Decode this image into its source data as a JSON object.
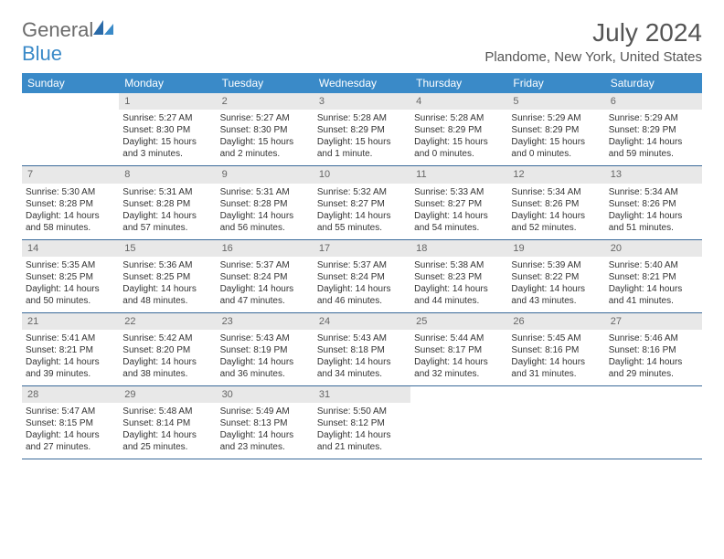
{
  "brand": {
    "part1": "General",
    "part2": "Blue"
  },
  "title": {
    "month": "July 2024",
    "location": "Plandome, New York, United States"
  },
  "colors": {
    "header_bg": "#3a8ac8",
    "header_text": "#ffffff",
    "daynum_bg": "#e8e8e8",
    "daynum_text": "#666666",
    "week_border": "#3a6a9a",
    "text": "#333333",
    "title_text": "#555555"
  },
  "dayNames": [
    "Sunday",
    "Monday",
    "Tuesday",
    "Wednesday",
    "Thursday",
    "Friday",
    "Saturday"
  ],
  "weeks": [
    [
      {
        "n": ""
      },
      {
        "n": "1",
        "sunrise": "5:27 AM",
        "sunset": "8:30 PM",
        "daylight": "15 hours and 3 minutes."
      },
      {
        "n": "2",
        "sunrise": "5:27 AM",
        "sunset": "8:30 PM",
        "daylight": "15 hours and 2 minutes."
      },
      {
        "n": "3",
        "sunrise": "5:28 AM",
        "sunset": "8:29 PM",
        "daylight": "15 hours and 1 minute."
      },
      {
        "n": "4",
        "sunrise": "5:28 AM",
        "sunset": "8:29 PM",
        "daylight": "15 hours and 0 minutes."
      },
      {
        "n": "5",
        "sunrise": "5:29 AM",
        "sunset": "8:29 PM",
        "daylight": "15 hours and 0 minutes."
      },
      {
        "n": "6",
        "sunrise": "5:29 AM",
        "sunset": "8:29 PM",
        "daylight": "14 hours and 59 minutes."
      }
    ],
    [
      {
        "n": "7",
        "sunrise": "5:30 AM",
        "sunset": "8:28 PM",
        "daylight": "14 hours and 58 minutes."
      },
      {
        "n": "8",
        "sunrise": "5:31 AM",
        "sunset": "8:28 PM",
        "daylight": "14 hours and 57 minutes."
      },
      {
        "n": "9",
        "sunrise": "5:31 AM",
        "sunset": "8:28 PM",
        "daylight": "14 hours and 56 minutes."
      },
      {
        "n": "10",
        "sunrise": "5:32 AM",
        "sunset": "8:27 PM",
        "daylight": "14 hours and 55 minutes."
      },
      {
        "n": "11",
        "sunrise": "5:33 AM",
        "sunset": "8:27 PM",
        "daylight": "14 hours and 54 minutes."
      },
      {
        "n": "12",
        "sunrise": "5:34 AM",
        "sunset": "8:26 PM",
        "daylight": "14 hours and 52 minutes."
      },
      {
        "n": "13",
        "sunrise": "5:34 AM",
        "sunset": "8:26 PM",
        "daylight": "14 hours and 51 minutes."
      }
    ],
    [
      {
        "n": "14",
        "sunrise": "5:35 AM",
        "sunset": "8:25 PM",
        "daylight": "14 hours and 50 minutes."
      },
      {
        "n": "15",
        "sunrise": "5:36 AM",
        "sunset": "8:25 PM",
        "daylight": "14 hours and 48 minutes."
      },
      {
        "n": "16",
        "sunrise": "5:37 AM",
        "sunset": "8:24 PM",
        "daylight": "14 hours and 47 minutes."
      },
      {
        "n": "17",
        "sunrise": "5:37 AM",
        "sunset": "8:24 PM",
        "daylight": "14 hours and 46 minutes."
      },
      {
        "n": "18",
        "sunrise": "5:38 AM",
        "sunset": "8:23 PM",
        "daylight": "14 hours and 44 minutes."
      },
      {
        "n": "19",
        "sunrise": "5:39 AM",
        "sunset": "8:22 PM",
        "daylight": "14 hours and 43 minutes."
      },
      {
        "n": "20",
        "sunrise": "5:40 AM",
        "sunset": "8:21 PM",
        "daylight": "14 hours and 41 minutes."
      }
    ],
    [
      {
        "n": "21",
        "sunrise": "5:41 AM",
        "sunset": "8:21 PM",
        "daylight": "14 hours and 39 minutes."
      },
      {
        "n": "22",
        "sunrise": "5:42 AM",
        "sunset": "8:20 PM",
        "daylight": "14 hours and 38 minutes."
      },
      {
        "n": "23",
        "sunrise": "5:43 AM",
        "sunset": "8:19 PM",
        "daylight": "14 hours and 36 minutes."
      },
      {
        "n": "24",
        "sunrise": "5:43 AM",
        "sunset": "8:18 PM",
        "daylight": "14 hours and 34 minutes."
      },
      {
        "n": "25",
        "sunrise": "5:44 AM",
        "sunset": "8:17 PM",
        "daylight": "14 hours and 32 minutes."
      },
      {
        "n": "26",
        "sunrise": "5:45 AM",
        "sunset": "8:16 PM",
        "daylight": "14 hours and 31 minutes."
      },
      {
        "n": "27",
        "sunrise": "5:46 AM",
        "sunset": "8:16 PM",
        "daylight": "14 hours and 29 minutes."
      }
    ],
    [
      {
        "n": "28",
        "sunrise": "5:47 AM",
        "sunset": "8:15 PM",
        "daylight": "14 hours and 27 minutes."
      },
      {
        "n": "29",
        "sunrise": "5:48 AM",
        "sunset": "8:14 PM",
        "daylight": "14 hours and 25 minutes."
      },
      {
        "n": "30",
        "sunrise": "5:49 AM",
        "sunset": "8:13 PM",
        "daylight": "14 hours and 23 minutes."
      },
      {
        "n": "31",
        "sunrise": "5:50 AM",
        "sunset": "8:12 PM",
        "daylight": "14 hours and 21 minutes."
      },
      {
        "n": ""
      },
      {
        "n": ""
      },
      {
        "n": ""
      }
    ]
  ],
  "labels": {
    "sunrise": "Sunrise:",
    "sunset": "Sunset:",
    "daylight": "Daylight:"
  }
}
